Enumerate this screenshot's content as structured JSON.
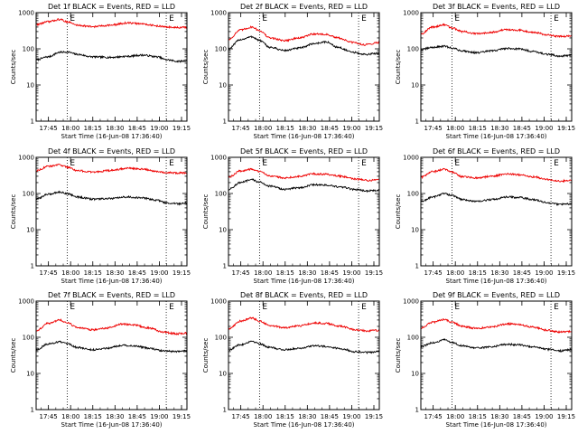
{
  "colors": {
    "events": "#000000",
    "lld": "#ee0000",
    "axis": "#000000",
    "background": "#ffffff"
  },
  "chart_data": [
    {
      "type": "line",
      "title": "Det 1f BLACK = Events, RED = LLD",
      "xlabel": "Start Time (16-Jun-08 17:36:40)",
      "ylabel": "Counts/sec",
      "xticks": [
        "17:45",
        "18:00",
        "18:15",
        "18:30",
        "18:45",
        "19:00",
        "19:15"
      ],
      "yticks": [
        "1",
        "10",
        "100",
        "1000"
      ],
      "yscale": "log",
      "ylim": [
        1,
        1000
      ],
      "xlim_minutes": [
        0,
        102
      ],
      "eclipse_marker": "E",
      "eclipse_lines_minutes": [
        21,
        88
      ],
      "series": [
        {
          "color": "black",
          "x": [
            0,
            8,
            16,
            21,
            28,
            38,
            50,
            62,
            72,
            82,
            88,
            96,
            102
          ],
          "y": [
            50,
            60,
            80,
            82,
            70,
            60,
            58,
            62,
            67,
            60,
            50,
            45,
            47
          ]
        },
        {
          "color": "red",
          "x": [
            0,
            8,
            16,
            21,
            28,
            38,
            50,
            62,
            72,
            82,
            88,
            96,
            102
          ],
          "y": [
            470,
            560,
            650,
            560,
            450,
            410,
            450,
            520,
            490,
            430,
            400,
            385,
            390
          ]
        }
      ]
    },
    {
      "type": "line",
      "title": "Det 2f BLACK = Events, RED = LLD",
      "xlabel": "Start Time (16-Jun-08 17:36:40)",
      "ylabel": "Counts/sec",
      "xticks": [
        "17:45",
        "18:00",
        "18:15",
        "18:30",
        "18:45",
        "19:00",
        "19:15"
      ],
      "yticks": [
        "1",
        "10",
        "100",
        "1000"
      ],
      "yscale": "log",
      "ylim": [
        1,
        1000
      ],
      "xlim_minutes": [
        0,
        102
      ],
      "eclipse_marker": "E",
      "eclipse_lines_minutes": [
        21,
        88
      ],
      "series": [
        {
          "color": "black",
          "x": [
            0,
            8,
            16,
            21,
            28,
            38,
            48,
            58,
            66,
            74,
            84,
            92,
            102
          ],
          "y": [
            100,
            180,
            215,
            170,
            110,
            90,
            105,
            140,
            155,
            110,
            80,
            70,
            75
          ]
        },
        {
          "color": "red",
          "x": [
            0,
            8,
            16,
            21,
            28,
            38,
            48,
            58,
            66,
            74,
            84,
            92,
            102
          ],
          "y": [
            180,
            330,
            400,
            320,
            200,
            170,
            200,
            260,
            250,
            200,
            150,
            130,
            150
          ]
        }
      ]
    },
    {
      "type": "line",
      "title": "Det 3f BLACK = Events, RED = LLD",
      "xlabel": "Start Time (16-Jun-08 17:36:40)",
      "ylabel": "Counts/sec",
      "xticks": [
        "17:45",
        "18:00",
        "18:15",
        "18:30",
        "18:45",
        "19:00",
        "19:15"
      ],
      "yticks": [
        "1",
        "10",
        "100",
        "1000"
      ],
      "yscale": "log",
      "ylim": [
        1,
        1000
      ],
      "xlim_minutes": [
        0,
        102
      ],
      "eclipse_marker": "E",
      "eclipse_lines_minutes": [
        21,
        88
      ],
      "series": [
        {
          "color": "black",
          "x": [
            0,
            8,
            16,
            21,
            28,
            38,
            48,
            58,
            66,
            76,
            86,
            94,
            102
          ],
          "y": [
            95,
            110,
            118,
            105,
            88,
            78,
            88,
            103,
            100,
            85,
            70,
            63,
            66
          ]
        },
        {
          "color": "red",
          "x": [
            0,
            8,
            16,
            21,
            28,
            38,
            48,
            58,
            66,
            76,
            86,
            94,
            102
          ],
          "y": [
            260,
            400,
            460,
            380,
            300,
            260,
            290,
            340,
            330,
            290,
            240,
            220,
            230
          ]
        }
      ]
    },
    {
      "type": "line",
      "title": "Det 4f BLACK = Events, RED = LLD",
      "xlabel": "Start Time (16-Jun-08 17:36:40)",
      "ylabel": "Counts/sec",
      "xticks": [
        "17:45",
        "18:00",
        "18:15",
        "18:30",
        "18:45",
        "19:00",
        "19:15"
      ],
      "yticks": [
        "1",
        "10",
        "100",
        "1000"
      ],
      "yscale": "log",
      "ylim": [
        1,
        1000
      ],
      "xlim_minutes": [
        0,
        102
      ],
      "eclipse_marker": "E",
      "eclipse_lines_minutes": [
        21,
        88
      ],
      "series": [
        {
          "color": "black",
          "x": [
            0,
            8,
            16,
            21,
            28,
            38,
            50,
            62,
            72,
            82,
            88,
            96,
            102
          ],
          "y": [
            70,
            95,
            110,
            100,
            80,
            70,
            72,
            80,
            75,
            65,
            55,
            52,
            54
          ]
        },
        {
          "color": "red",
          "x": [
            0,
            8,
            16,
            21,
            28,
            38,
            50,
            62,
            72,
            82,
            88,
            96,
            102
          ],
          "y": [
            430,
            560,
            620,
            540,
            430,
            390,
            430,
            500,
            470,
            410,
            380,
            370,
            375
          ]
        }
      ]
    },
    {
      "type": "line",
      "title": "Det 5f BLACK = Events, RED = LLD",
      "xlabel": "Start Time (16-Jun-08 17:36:40)",
      "ylabel": "Counts/sec",
      "xticks": [
        "17:45",
        "18:00",
        "18:15",
        "18:30",
        "18:45",
        "19:00",
        "19:15"
      ],
      "yticks": [
        "1",
        "10",
        "100",
        "1000"
      ],
      "yscale": "log",
      "ylim": [
        1,
        1000
      ],
      "xlim_minutes": [
        0,
        102
      ],
      "eclipse_marker": "E",
      "eclipse_lines_minutes": [
        21,
        88
      ],
      "series": [
        {
          "color": "black",
          "x": [
            0,
            8,
            16,
            21,
            28,
            38,
            48,
            58,
            66,
            76,
            86,
            94,
            102
          ],
          "y": [
            130,
            200,
            240,
            205,
            160,
            130,
            145,
            175,
            170,
            150,
            128,
            118,
            122
          ]
        },
        {
          "color": "red",
          "x": [
            0,
            8,
            16,
            21,
            28,
            38,
            48,
            58,
            66,
            76,
            86,
            94,
            102
          ],
          "y": [
            280,
            420,
            470,
            400,
            310,
            270,
            300,
            350,
            340,
            300,
            250,
            230,
            240
          ]
        }
      ]
    },
    {
      "type": "line",
      "title": "Det 6f BLACK = Events, RED = LLD",
      "xlabel": "Start Time (16-Jun-08 17:36:40)",
      "ylabel": "Counts/sec",
      "xticks": [
        "17:45",
        "18:00",
        "18:15",
        "18:30",
        "18:45",
        "19:00",
        "19:15"
      ],
      "yticks": [
        "1",
        "10",
        "100",
        "1000"
      ],
      "yscale": "log",
      "ylim": [
        1,
        1000
      ],
      "xlim_minutes": [
        0,
        102
      ],
      "eclipse_marker": "E",
      "eclipse_lines_minutes": [
        21,
        88
      ],
      "series": [
        {
          "color": "black",
          "x": [
            0,
            8,
            16,
            21,
            28,
            38,
            48,
            58,
            66,
            76,
            86,
            94,
            102
          ],
          "y": [
            60,
            80,
            100,
            88,
            68,
            60,
            68,
            80,
            78,
            68,
            55,
            50,
            52
          ]
        },
        {
          "color": "red",
          "x": [
            0,
            8,
            16,
            21,
            28,
            38,
            48,
            58,
            66,
            76,
            86,
            94,
            102
          ],
          "y": [
            280,
            400,
            470,
            390,
            290,
            270,
            300,
            350,
            330,
            290,
            240,
            220,
            230
          ]
        }
      ]
    },
    {
      "type": "line",
      "title": "Det 7f BLACK = Events, RED = LLD",
      "xlabel": "Start Time (16-Jun-08 17:36:40)",
      "ylabel": "Counts/sec",
      "xticks": [
        "17:45",
        "18:00",
        "18:15",
        "18:30",
        "18:45",
        "19:00",
        "19:15"
      ],
      "yticks": [
        "1",
        "10",
        "100",
        "1000"
      ],
      "yscale": "log",
      "ylim": [
        1,
        1000
      ],
      "xlim_minutes": [
        0,
        102
      ],
      "eclipse_marker": "E",
      "eclipse_lines_minutes": [
        21,
        88
      ],
      "series": [
        {
          "color": "black",
          "x": [
            0,
            8,
            16,
            21,
            28,
            38,
            48,
            58,
            66,
            76,
            86,
            94,
            102
          ],
          "y": [
            45,
            65,
            75,
            65,
            52,
            45,
            50,
            60,
            58,
            50,
            42,
            40,
            42
          ]
        },
        {
          "color": "red",
          "x": [
            0,
            8,
            16,
            21,
            28,
            38,
            48,
            58,
            66,
            76,
            86,
            94,
            102
          ],
          "y": [
            150,
            240,
            300,
            250,
            185,
            160,
            180,
            230,
            220,
            180,
            140,
            125,
            130
          ]
        }
      ]
    },
    {
      "type": "line",
      "title": "Det 8f BLACK = Events, RED = LLD",
      "xlabel": "Start Time (16-Jun-08 17:36:40)",
      "ylabel": "Counts/sec",
      "xticks": [
        "17:45",
        "18:00",
        "18:15",
        "18:30",
        "18:45",
        "19:00",
        "19:15"
      ],
      "yticks": [
        "1",
        "10",
        "100",
        "1000"
      ],
      "yscale": "log",
      "ylim": [
        1,
        1000
      ],
      "xlim_minutes": [
        0,
        102
      ],
      "eclipse_marker": "E",
      "eclipse_lines_minutes": [
        21,
        88
      ],
      "series": [
        {
          "color": "black",
          "x": [
            0,
            8,
            16,
            21,
            28,
            38,
            48,
            58,
            66,
            76,
            86,
            94,
            102
          ],
          "y": [
            45,
            62,
            78,
            66,
            52,
            45,
            50,
            58,
            56,
            48,
            40,
            38,
            40
          ]
        },
        {
          "color": "red",
          "x": [
            0,
            8,
            16,
            21,
            28,
            38,
            48,
            58,
            66,
            76,
            86,
            94,
            102
          ],
          "y": [
            170,
            280,
            340,
            280,
            210,
            185,
            205,
            250,
            240,
            200,
            160,
            150,
            155
          ]
        }
      ]
    },
    {
      "type": "line",
      "title": "Det 9f BLACK = Events, RED = LLD",
      "xlabel": "Start Time (16-Jun-08 17:36:40)",
      "ylabel": "Counts/sec",
      "xticks": [
        "17:45",
        "18:00",
        "18:15",
        "18:30",
        "18:45",
        "19:00",
        "19:15"
      ],
      "yticks": [
        "1",
        "10",
        "100",
        "1000"
      ],
      "yscale": "log",
      "ylim": [
        1,
        1000
      ],
      "xlim_minutes": [
        0,
        102
      ],
      "eclipse_marker": "E",
      "eclipse_lines_minutes": [
        21,
        88
      ],
      "series": [
        {
          "color": "black",
          "x": [
            0,
            8,
            16,
            21,
            28,
            38,
            48,
            58,
            66,
            76,
            86,
            94,
            102
          ],
          "y": [
            55,
            70,
            85,
            72,
            58,
            50,
            55,
            64,
            62,
            54,
            46,
            42,
            45
          ]
        },
        {
          "color": "red",
          "x": [
            0,
            8,
            16,
            21,
            28,
            38,
            48,
            58,
            66,
            76,
            86,
            94,
            102
          ],
          "y": [
            180,
            260,
            310,
            260,
            200,
            175,
            195,
            235,
            225,
            190,
            155,
            140,
            145
          ]
        }
      ]
    }
  ]
}
